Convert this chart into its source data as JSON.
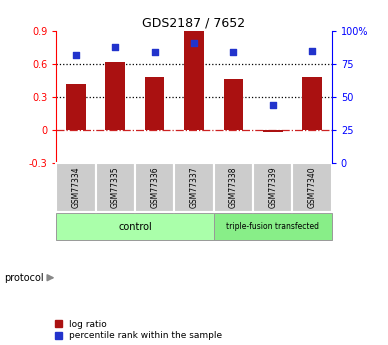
{
  "title": "GDS2187 / 7652",
  "samples": [
    "GSM77334",
    "GSM77335",
    "GSM77336",
    "GSM77337",
    "GSM77338",
    "GSM77339",
    "GSM77340"
  ],
  "log_ratio": [
    0.42,
    0.62,
    0.48,
    0.9,
    0.46,
    -0.02,
    0.48
  ],
  "percentile_rank": [
    82,
    88,
    84,
    91,
    84,
    44,
    85
  ],
  "ylim_left": [
    -0.3,
    0.9
  ],
  "ylim_right": [
    0,
    100
  ],
  "yticks_left": [
    -0.3,
    0.0,
    0.3,
    0.6,
    0.9
  ],
  "ytick_labels_left": [
    "-0.3",
    "0",
    "0.3",
    "0.6",
    "0.9"
  ],
  "yticks_right": [
    0,
    25,
    50,
    75,
    100
  ],
  "ytick_labels_right": [
    "0",
    "25",
    "50",
    "75",
    "100%"
  ],
  "bar_color": "#aa1111",
  "dot_color": "#2233cc",
  "hline_color": "#cc2222",
  "dotline_y": [
    0.3,
    0.6
  ],
  "n_control": 4,
  "n_triple": 3,
  "control_color": "#aaffaa",
  "triple_color": "#88ee88",
  "protocol_label": "protocol",
  "control_label": "control",
  "triple_label": "triple-fusion transfected",
  "legend_log_label": "log ratio",
  "legend_pct_label": "percentile rank within the sample",
  "bg_color": "#ffffff",
  "bar_width": 0.5,
  "cell_bg": "#cccccc",
  "cell_edge": "#ffffff"
}
